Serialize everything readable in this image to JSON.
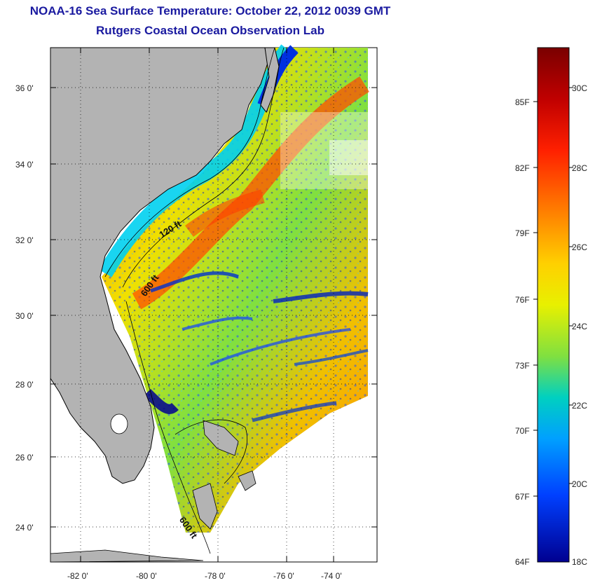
{
  "title": {
    "line1": "NOAA-16 Sea Surface Temperature:  October 22, 2012 0039 GMT",
    "line2": "Rutgers Coastal Ocean Observation Lab"
  },
  "map": {
    "lat_labels": [
      "36 0'",
      "34 0'",
      "32 0'",
      "30 0'",
      "28 0'",
      "26 0'",
      "24 0'"
    ],
    "lon_labels": [
      "-82 0'",
      "-80 0'",
      "-78 0'",
      "-76 0'",
      "-74 0'"
    ],
    "contour_labels": [
      "120 ft",
      "600 ft",
      "600 ft"
    ],
    "colors": {
      "land": "#b3b3b3",
      "coldest": "#0000a0",
      "cool": "#00c8e0",
      "mid": "#f0e000",
      "warm": "#ff8000",
      "hot": "#d02000"
    }
  },
  "colorbar": {
    "fahrenheit_labels": [
      "85F",
      "82F",
      "79F",
      "76F",
      "73F",
      "70F",
      "67F",
      "64F"
    ],
    "celsius_labels": [
      "30C",
      "28C",
      "26C",
      "24C",
      "22C",
      "20C",
      "18C"
    ],
    "stops": [
      "#7a0000",
      "#c00000",
      "#ff2000",
      "#ff8000",
      "#ffd000",
      "#e8f000",
      "#80e040",
      "#00d0c0",
      "#00a0ff",
      "#0040ff",
      "#000090"
    ]
  }
}
